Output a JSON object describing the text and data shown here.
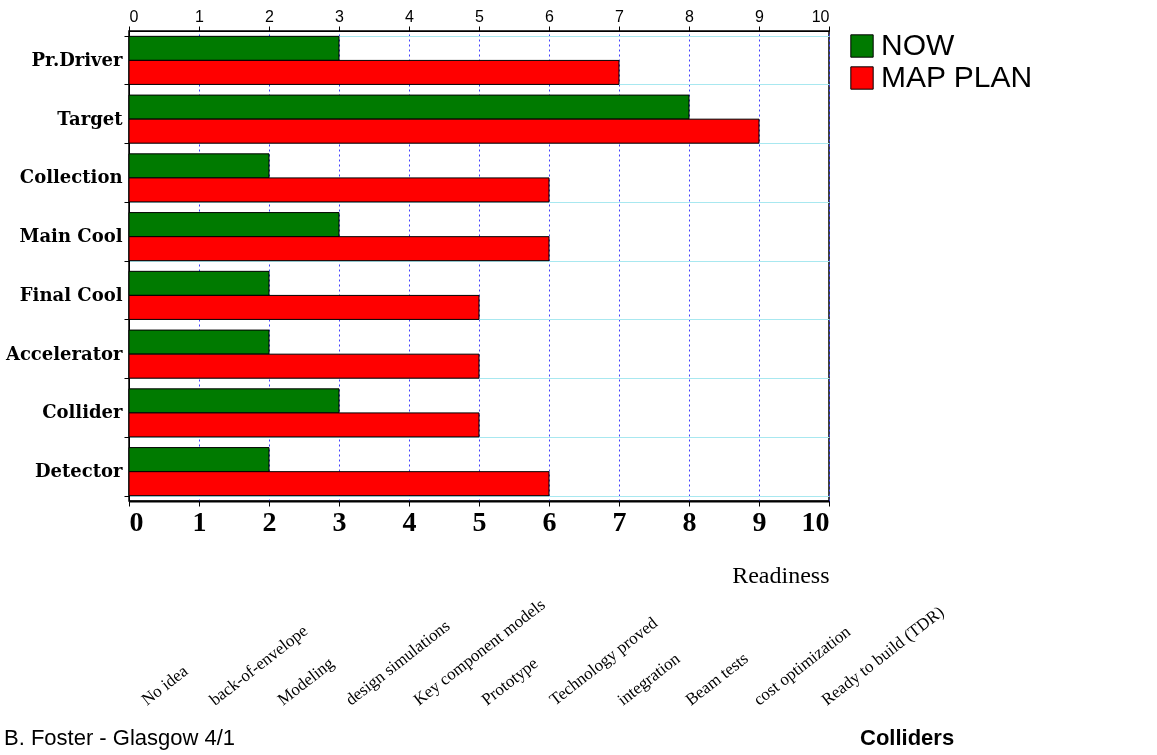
{
  "chart_data": {
    "type": "bar",
    "orientation": "horizontal",
    "xlabel": "Readiness",
    "categories": [
      "Pr.Driver",
      "Target",
      "Collection",
      "Main Cool",
      "Final Cool",
      "Accelerator",
      "Collider",
      "Detector"
    ],
    "series": [
      {
        "name": "NOW",
        "color": "#007a00",
        "values": [
          3,
          8,
          2,
          3,
          2,
          2,
          3,
          2
        ]
      },
      {
        "name": "MAP PLAN",
        "color": "#ff0000",
        "values": [
          7,
          9,
          6,
          6,
          5,
          5,
          5,
          6
        ]
      }
    ],
    "xlim": [
      0,
      10
    ],
    "xticks": [
      0,
      1,
      2,
      3,
      4,
      5,
      6,
      7,
      8,
      9,
      10
    ],
    "x2lim": [
      0,
      10
    ],
    "x2ticks": [
      0,
      1,
      2,
      3,
      4,
      5,
      6,
      7,
      8,
      9,
      10
    ],
    "grid": true,
    "legend": "right",
    "annotations": [
      "No idea",
      "back-of-envelope",
      "Modeling",
      "design simulations",
      "Key component models",
      "Prototype",
      "Technology proved",
      "integration",
      "Beam tests",
      "cost optimization",
      "Ready to build (TDR)",
      "B. Foster - Glasgow 4/1",
      "Colliders"
    ]
  }
}
